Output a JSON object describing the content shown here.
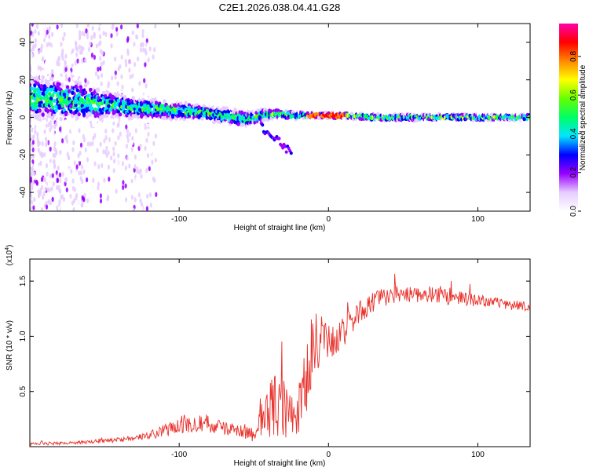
{
  "figure": {
    "title": "C2E1.2026.038.04.41.G28"
  },
  "chart_data": [
    {
      "type": "heatmap",
      "xlabel": "Height of straight line (km)",
      "ylabel": "Frequency (Hz)",
      "xlim": [
        -200,
        135
      ],
      "ylim": [
        -50,
        50
      ],
      "xticks": [
        -100,
        0,
        100
      ],
      "yticks": [
        -40,
        -20,
        0,
        20,
        40
      ],
      "grid": false,
      "colorbar": {
        "label": "Normalized spectral amplitude",
        "range": [
          0,
          0.97
        ],
        "ticks": [
          0.0,
          0.2,
          0.4,
          0.6,
          0.8
        ],
        "colors": [
          "#ffffff",
          "#e6ccff",
          "#9900ff",
          "#0000ff",
          "#00e5ff",
          "#00ff66",
          "#66ff00",
          "#ffff00",
          "#ff8800",
          "#ff0000",
          "#ff00aa"
        ]
      },
      "ridge": {
        "description": "peak frequency track (Hz) vs height (km)",
        "x": [
          -190,
          -170,
          -150,
          -130,
          -110,
          -90,
          -70,
          -55,
          -45,
          -35,
          -25,
          -15,
          -5,
          0,
          10,
          30,
          60,
          100,
          135
        ],
        "y": [
          10,
          9,
          7,
          5,
          4,
          3,
          1,
          -1,
          1,
          2,
          1,
          1,
          1,
          1,
          1,
          0,
          0,
          0,
          0
        ],
        "spread": [
          14,
          12,
          9,
          7,
          6,
          5,
          5,
          5,
          4,
          3,
          3,
          2,
          2,
          2,
          2,
          2,
          2,
          2,
          2
        ]
      },
      "side_branch": {
        "x": [
          -45,
          -40,
          -35,
          -30,
          -25
        ],
        "y": [
          -6,
          -9,
          -12,
          -15,
          -18
        ]
      }
    },
    {
      "type": "line",
      "xlabel": "Height of straight line (km)",
      "ylabel": "SNR (10 * v/v)",
      "yscale_label": "(x10",
      "yscale_exponent": "4",
      "xlim": [
        -200,
        135
      ],
      "ylim": [
        0,
        1.7
      ],
      "xticks": [
        -100,
        0,
        100
      ],
      "yticks": [
        0.5,
        1.0,
        1.5
      ],
      "color": "#e8302a",
      "grid": false,
      "series": [
        {
          "name": "SNR",
          "x": [
            -200,
            -180,
            -160,
            -140,
            -130,
            -120,
            -110,
            -100,
            -90,
            -80,
            -70,
            -60,
            -50,
            -45,
            -40,
            -35,
            -30,
            -25,
            -20,
            -15,
            -10,
            -5,
            0,
            5,
            10,
            15,
            20,
            30,
            40,
            50,
            60,
            70,
            80,
            90,
            100,
            110,
            120,
            135
          ],
          "y": [
            0.02,
            0.03,
            0.04,
            0.06,
            0.07,
            0.1,
            0.14,
            0.18,
            0.22,
            0.2,
            0.16,
            0.14,
            0.12,
            0.22,
            0.3,
            0.36,
            0.32,
            0.28,
            0.3,
            0.52,
            0.9,
            0.95,
            0.92,
            0.95,
            1.02,
            1.12,
            1.2,
            1.3,
            1.36,
            1.38,
            1.38,
            1.37,
            1.35,
            1.33,
            1.32,
            1.3,
            1.29,
            1.25
          ],
          "noise": [
            0.02,
            0.02,
            0.02,
            0.03,
            0.03,
            0.05,
            0.08,
            0.12,
            0.13,
            0.12,
            0.08,
            0.08,
            0.12,
            0.25,
            0.35,
            0.45,
            0.4,
            0.35,
            0.35,
            0.5,
            0.5,
            0.35,
            0.25,
            0.22,
            0.2,
            0.18,
            0.15,
            0.13,
            0.12,
            0.12,
            0.12,
            0.11,
            0.1,
            0.09,
            0.08,
            0.07,
            0.07,
            0.07
          ]
        }
      ]
    }
  ]
}
